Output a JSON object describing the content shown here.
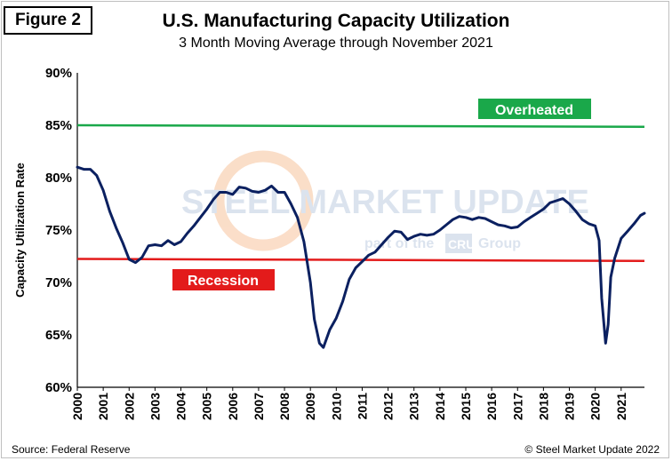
{
  "figure_label": "Figure 2",
  "source": "Source: Federal Reserve",
  "copyright": "© Steel Market Update 2022",
  "watermark": {
    "main": "STEEL MARKET UPDATE",
    "part_of": "part of the",
    "cru": "CRU",
    "group": "Group"
  },
  "chart_data": {
    "type": "line",
    "title": "U.S. Manufacturing  Capacity Utilization",
    "subtitle": "3 Month Moving Average through November 2021",
    "ylabel": "Capacity Utilization Rate",
    "xlabel": "",
    "ylim": [
      60,
      90
    ],
    "xlim": [
      2000,
      2021.9
    ],
    "y_ticks": [
      "60%",
      "65%",
      "70%",
      "75%",
      "80%",
      "85%",
      "90%"
    ],
    "y_tick_values": [
      60,
      65,
      70,
      75,
      80,
      85,
      90
    ],
    "x_ticks": [
      "2000",
      "2001",
      "2002",
      "2003",
      "2004",
      "2005",
      "2006",
      "2007",
      "2008",
      "2009",
      "2010",
      "2011",
      "2012",
      "2013",
      "2014",
      "2015",
      "2016",
      "2017",
      "2018",
      "2019",
      "2020",
      "2021"
    ],
    "x_tick_values": [
      2000,
      2001,
      2002,
      2003,
      2004,
      2005,
      2006,
      2007,
      2008,
      2009,
      2010,
      2011,
      2012,
      2013,
      2014,
      2015,
      2016,
      2017,
      2018,
      2019,
      2020,
      2021
    ],
    "grid": false,
    "series": [
      {
        "color": "#0b2060",
        "points": [
          [
            2000.0,
            81.0
          ],
          [
            2000.25,
            80.8
          ],
          [
            2000.5,
            80.8
          ],
          [
            2000.75,
            80.2
          ],
          [
            2001.0,
            78.8
          ],
          [
            2001.25,
            76.8
          ],
          [
            2001.5,
            75.2
          ],
          [
            2001.75,
            73.8
          ],
          [
            2002.0,
            72.2
          ],
          [
            2002.25,
            71.9
          ],
          [
            2002.5,
            72.4
          ],
          [
            2002.75,
            73.5
          ],
          [
            2003.0,
            73.6
          ],
          [
            2003.25,
            73.5
          ],
          [
            2003.5,
            74.0
          ],
          [
            2003.75,
            73.6
          ],
          [
            2004.0,
            73.9
          ],
          [
            2004.25,
            74.7
          ],
          [
            2004.5,
            75.4
          ],
          [
            2004.75,
            76.2
          ],
          [
            2005.0,
            77.0
          ],
          [
            2005.25,
            77.9
          ],
          [
            2005.5,
            78.6
          ],
          [
            2005.75,
            78.6
          ],
          [
            2006.0,
            78.4
          ],
          [
            2006.25,
            79.1
          ],
          [
            2006.5,
            79.0
          ],
          [
            2006.75,
            78.7
          ],
          [
            2007.0,
            78.6
          ],
          [
            2007.25,
            78.8
          ],
          [
            2007.5,
            79.2
          ],
          [
            2007.75,
            78.6
          ],
          [
            2008.0,
            78.6
          ],
          [
            2008.25,
            77.5
          ],
          [
            2008.5,
            76.2
          ],
          [
            2008.75,
            73.9
          ],
          [
            2009.0,
            70.0
          ],
          [
            2009.15,
            66.5
          ],
          [
            2009.35,
            64.2
          ],
          [
            2009.5,
            63.8
          ],
          [
            2009.75,
            65.5
          ],
          [
            2010.0,
            66.6
          ],
          [
            2010.25,
            68.2
          ],
          [
            2010.5,
            70.3
          ],
          [
            2010.75,
            71.4
          ],
          [
            2011.0,
            72.0
          ],
          [
            2011.25,
            72.6
          ],
          [
            2011.5,
            72.9
          ],
          [
            2011.75,
            73.6
          ],
          [
            2012.0,
            74.3
          ],
          [
            2012.25,
            74.9
          ],
          [
            2012.5,
            74.8
          ],
          [
            2012.75,
            74.1
          ],
          [
            2013.0,
            74.4
          ],
          [
            2013.25,
            74.6
          ],
          [
            2013.5,
            74.5
          ],
          [
            2013.75,
            74.6
          ],
          [
            2014.0,
            75.0
          ],
          [
            2014.25,
            75.5
          ],
          [
            2014.5,
            76.0
          ],
          [
            2014.75,
            76.3
          ],
          [
            2015.0,
            76.2
          ],
          [
            2015.25,
            76.0
          ],
          [
            2015.5,
            76.2
          ],
          [
            2015.75,
            76.1
          ],
          [
            2016.0,
            75.8
          ],
          [
            2016.25,
            75.5
          ],
          [
            2016.5,
            75.4
          ],
          [
            2016.75,
            75.2
          ],
          [
            2017.0,
            75.3
          ],
          [
            2017.25,
            75.8
          ],
          [
            2017.5,
            76.2
          ],
          [
            2017.75,
            76.6
          ],
          [
            2018.0,
            77.0
          ],
          [
            2018.25,
            77.6
          ],
          [
            2018.5,
            77.8
          ],
          [
            2018.75,
            78.0
          ],
          [
            2019.0,
            77.5
          ],
          [
            2019.25,
            76.8
          ],
          [
            2019.5,
            76.0
          ],
          [
            2019.75,
            75.6
          ],
          [
            2020.0,
            75.4
          ],
          [
            2020.15,
            74.0
          ],
          [
            2020.25,
            68.5
          ],
          [
            2020.4,
            64.2
          ],
          [
            2020.5,
            66.0
          ],
          [
            2020.6,
            70.5
          ],
          [
            2020.75,
            72.3
          ],
          [
            2021.0,
            74.2
          ],
          [
            2021.25,
            74.9
          ],
          [
            2021.5,
            75.6
          ],
          [
            2021.75,
            76.4
          ],
          [
            2021.9,
            76.6
          ]
        ]
      }
    ],
    "reference_lines": [
      {
        "label": "Overheated",
        "y_start": 85.0,
        "y_end": 84.85,
        "color": "#1aa84a"
      },
      {
        "label": "Recession",
        "y_start": 72.25,
        "y_end": 72.05,
        "color": "#e31b1b"
      }
    ]
  }
}
